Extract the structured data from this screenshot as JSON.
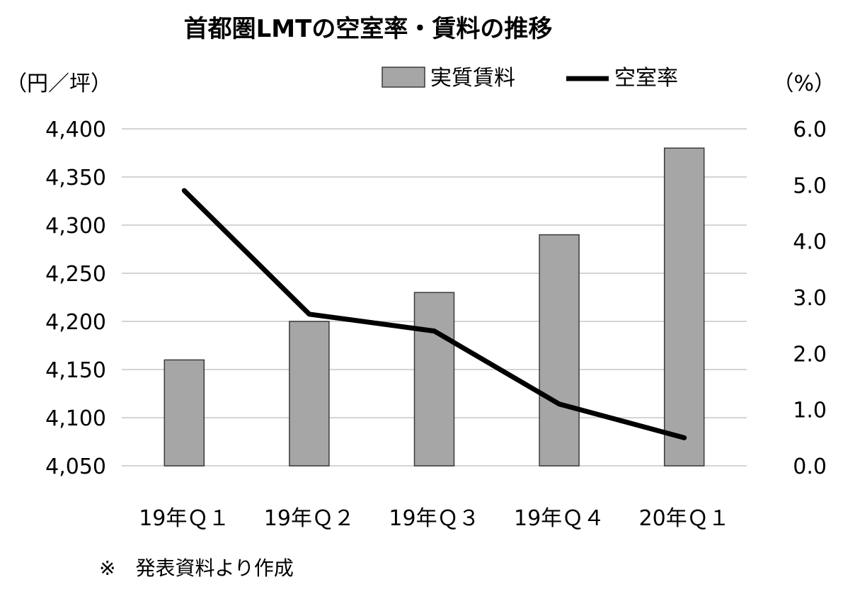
{
  "chart_data": {
    "type": "bar",
    "title": "首都圏LMTの空室率・賃料の推移",
    "left_unit": "（円／坪）",
    "right_unit": "（%）",
    "categories": [
      "19年Ｑ１",
      "19年Ｑ２",
      "19年Ｑ３",
      "19年Ｑ４",
      "20年Ｑ１"
    ],
    "series": [
      {
        "name": "実質賃料",
        "type": "bar",
        "axis": "left",
        "values": [
          4160,
          4200,
          4230,
          4290,
          4380
        ],
        "color": "#a6a6a6"
      },
      {
        "name": "空室率",
        "type": "line",
        "axis": "right",
        "values": [
          4.9,
          2.7,
          2.4,
          1.1,
          0.5
        ],
        "color": "#000000"
      }
    ],
    "left_axis": {
      "ylim": [
        4050,
        4400
      ],
      "ticks": [
        4050,
        4100,
        4150,
        4200,
        4250,
        4300,
        4350,
        4400
      ],
      "tick_labels": [
        "4,050",
        "4,100",
        "4,150",
        "4,200",
        "4,250",
        "4,300",
        "4,350",
        "4,400"
      ]
    },
    "right_axis": {
      "ylim": [
        0,
        6
      ],
      "ticks": [
        0,
        1,
        2,
        3,
        4,
        5,
        6
      ],
      "tick_labels": [
        "0.0",
        "1.0",
        "2.0",
        "3.0",
        "4.0",
        "5.0",
        "6.0"
      ]
    },
    "grid": true,
    "legend_position": "top-right",
    "note": "※　発表資料より作成"
  }
}
